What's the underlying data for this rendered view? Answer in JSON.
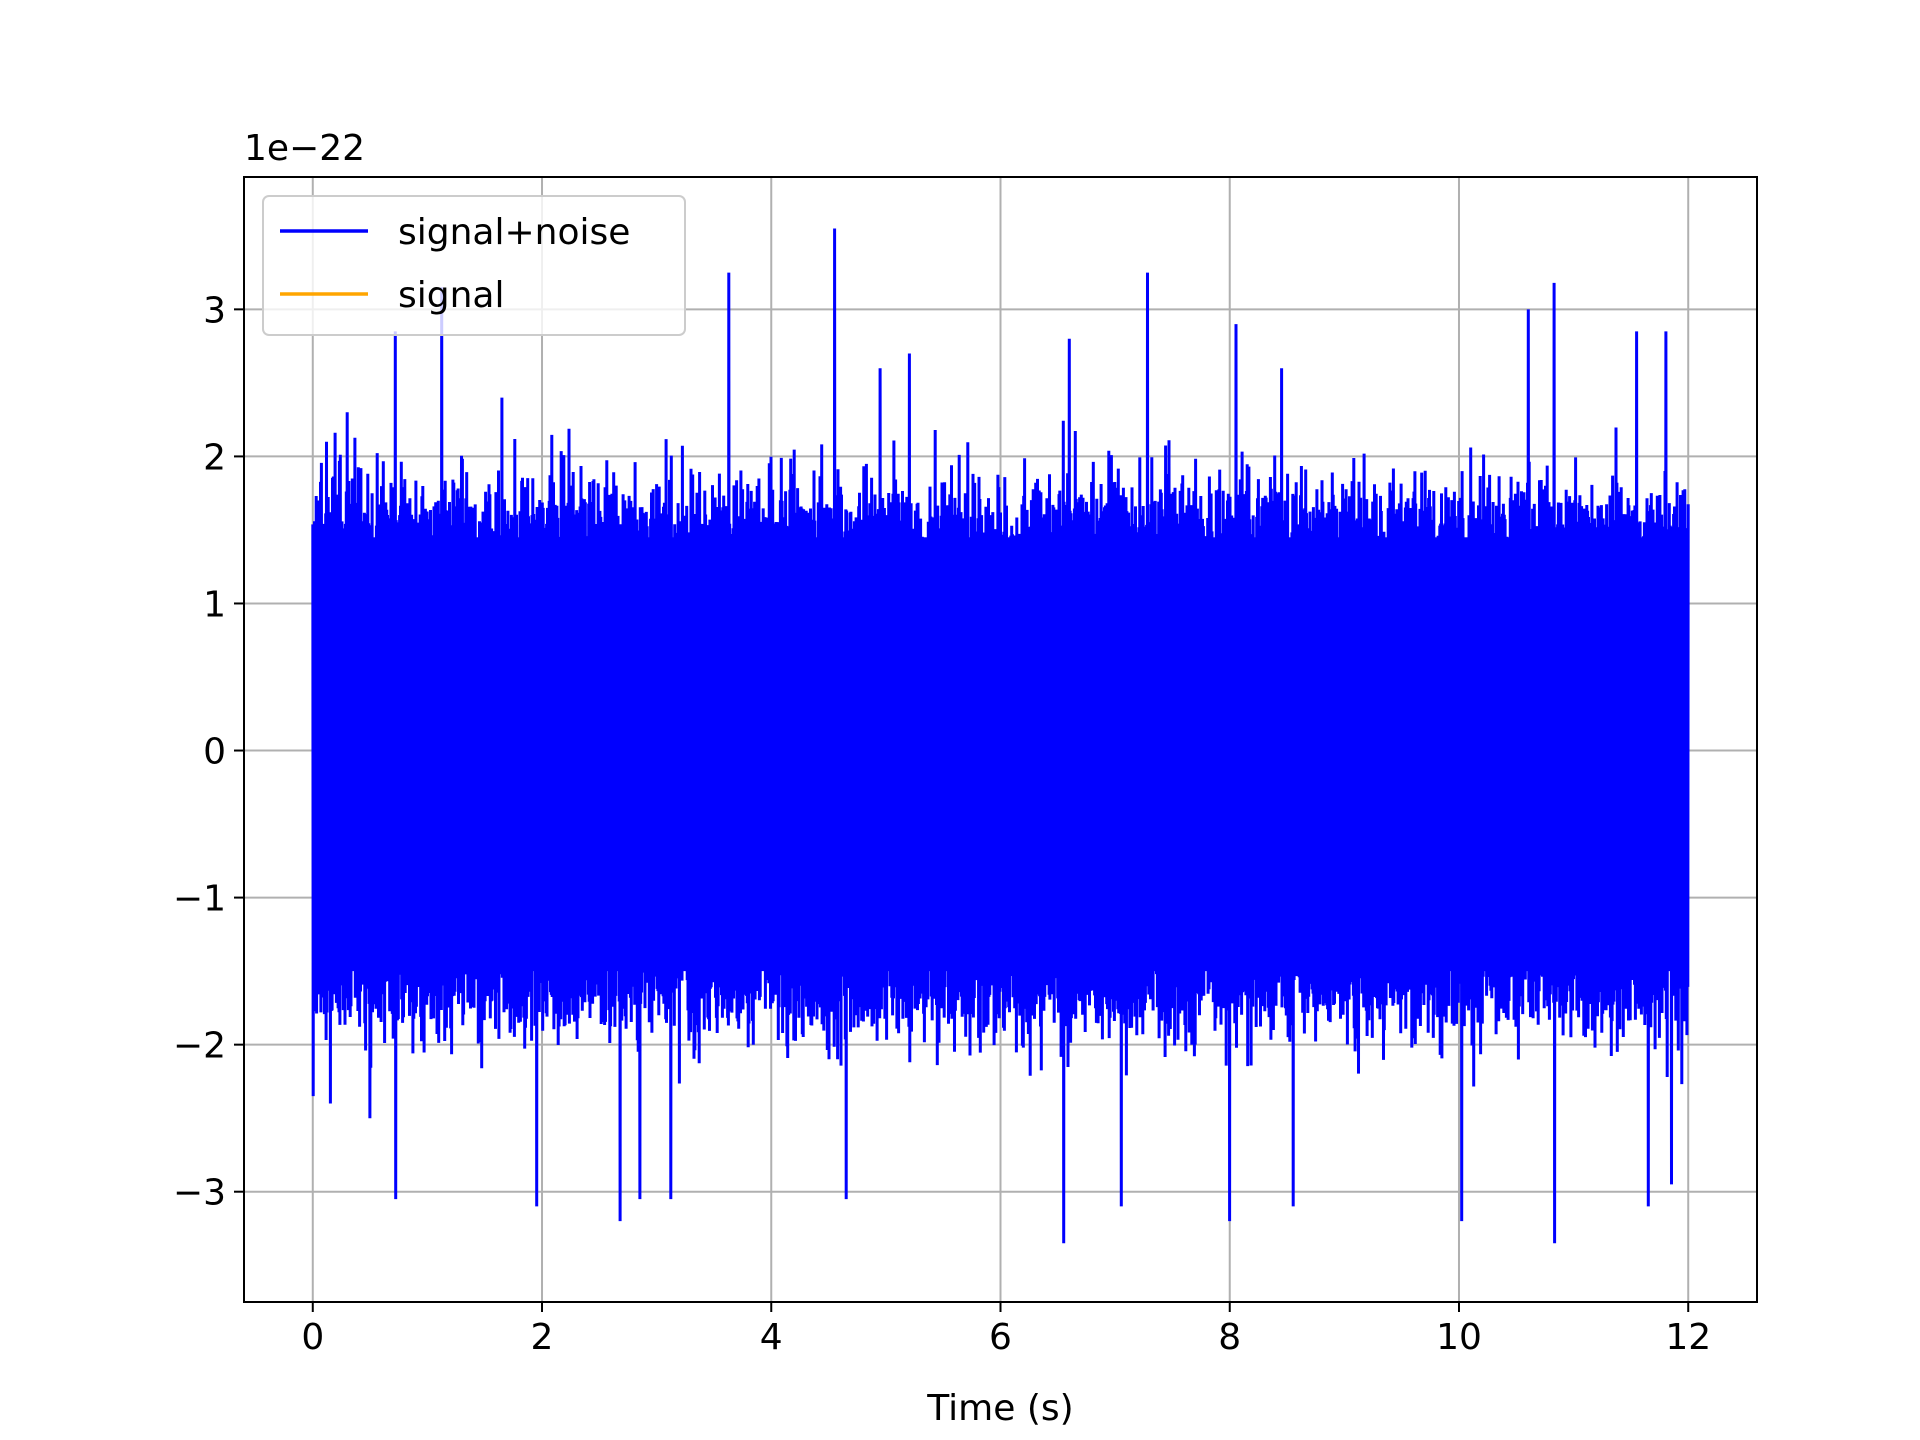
{
  "chart_data": {
    "type": "line",
    "title": "",
    "xlabel": "Time (s)",
    "ylabel": "",
    "y_offset_label": "1e−22",
    "xlim": [
      -0.6,
      12.6
    ],
    "ylim": [
      -3.75,
      3.9
    ],
    "x_ticks": [
      0,
      2,
      4,
      6,
      8,
      10,
      12
    ],
    "x_tick_labels": [
      "0",
      "2",
      "4",
      "6",
      "8",
      "10",
      "12"
    ],
    "y_ticks": [
      -3,
      -2,
      -1,
      0,
      1,
      2,
      3
    ],
    "y_tick_labels": [
      "−3",
      "−2",
      "−1",
      "0",
      "1",
      "2",
      "3"
    ],
    "grid": true,
    "legend_position": "upper-left",
    "series": [
      {
        "name": "signal+noise",
        "color": "#0000ff",
        "x_range": [
          0,
          12
        ],
        "envelope_upper_typical": 1.6,
        "envelope_lower_typical": -1.7,
        "peaks": [
          {
            "x": 0.02,
            "y": 1.0
          },
          {
            "x": 0.05,
            "y": 1.7
          },
          {
            "x": 0.12,
            "y": 2.1
          },
          {
            "x": 0.3,
            "y": 2.3
          },
          {
            "x": 0.72,
            "y": 2.85
          },
          {
            "x": 1.12,
            "y": 3.15
          },
          {
            "x": 1.65,
            "y": 2.4
          },
          {
            "x": 3.63,
            "y": 3.25
          },
          {
            "x": 4.55,
            "y": 3.55
          },
          {
            "x": 4.95,
            "y": 2.6
          },
          {
            "x": 5.2,
            "y": 2.7
          },
          {
            "x": 6.6,
            "y": 2.8
          },
          {
            "x": 7.28,
            "y": 3.25
          },
          {
            "x": 8.05,
            "y": 2.9
          },
          {
            "x": 8.45,
            "y": 2.6
          },
          {
            "x": 10.6,
            "y": 3.0
          },
          {
            "x": 10.83,
            "y": 3.18
          },
          {
            "x": 11.55,
            "y": 2.85
          },
          {
            "x": 11.8,
            "y": 2.85
          }
        ],
        "troughs": [
          {
            "x": 0.0,
            "y": -2.35
          },
          {
            "x": 0.15,
            "y": -2.4
          },
          {
            "x": 0.5,
            "y": -2.5
          },
          {
            "x": 0.72,
            "y": -3.05
          },
          {
            "x": 1.95,
            "y": -3.1
          },
          {
            "x": 2.68,
            "y": -3.2
          },
          {
            "x": 2.85,
            "y": -3.05
          },
          {
            "x": 3.12,
            "y": -3.05
          },
          {
            "x": 4.65,
            "y": -3.05
          },
          {
            "x": 6.55,
            "y": -3.35
          },
          {
            "x": 7.05,
            "y": -3.1
          },
          {
            "x": 8.0,
            "y": -3.2
          },
          {
            "x": 8.55,
            "y": -3.1
          },
          {
            "x": 10.02,
            "y": -3.2
          },
          {
            "x": 10.83,
            "y": -3.35
          },
          {
            "x": 11.65,
            "y": -3.1
          },
          {
            "x": 11.85,
            "y": -2.95
          }
        ]
      },
      {
        "name": "signal",
        "color": "#ffa500",
        "x_range": [
          0,
          12
        ],
        "values_note": ""
      }
    ]
  }
}
